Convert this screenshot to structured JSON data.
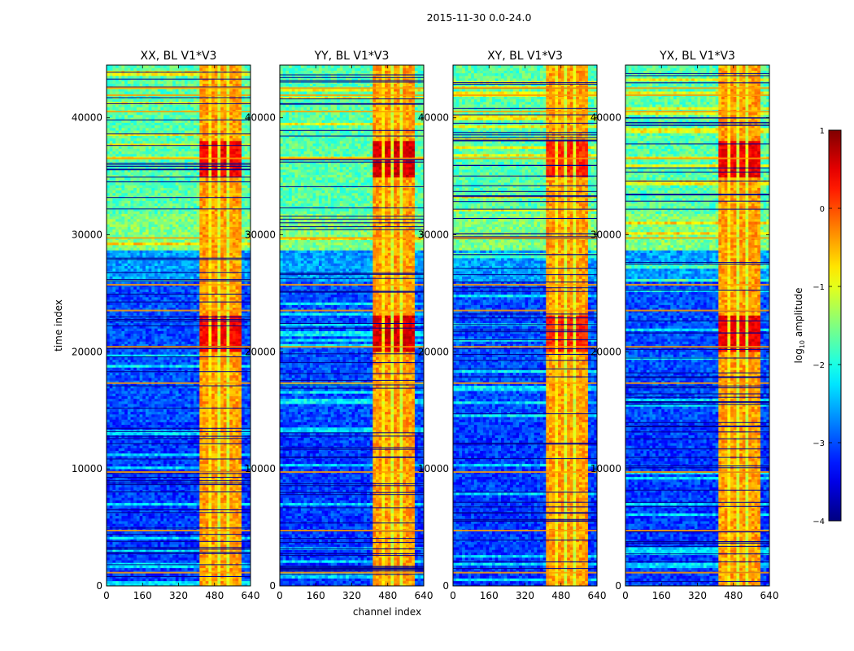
{
  "chart_data": {
    "type": "heatmap",
    "suptitle": "2015-11-30 0.0-24.0",
    "xlabel": "channel index",
    "ylabel": "time index",
    "x_range": [
      0,
      640
    ],
    "y_range": [
      0,
      44500
    ],
    "x_ticks": [
      0,
      160,
      320,
      480,
      640
    ],
    "y_ticks": [
      0,
      10000,
      20000,
      30000,
      40000
    ],
    "colorbar": {
      "label": "log",
      "label_sub": "10",
      "label_rest": " amplitude",
      "range": [
        -4,
        1
      ],
      "ticks": [
        1,
        0,
        -1,
        -2,
        -3,
        -4
      ],
      "tick_labels": [
        "1",
        "0",
        "−1",
        "−2",
        "−3",
        "−4"
      ],
      "colormap": "jet"
    },
    "panels": [
      {
        "title": "XX, BL V1*V3",
        "band_peak": 0.15
      },
      {
        "title": "YY, BL V1*V3",
        "band_peak": 0.35
      },
      {
        "title": "XY, BL V1*V3",
        "band_peak": -0.05
      },
      {
        "title": "YX, BL V1*V3",
        "band_peak": 0.2
      }
    ],
    "rfi_band": {
      "channel_start": 410,
      "channel_end": 600,
      "bright_channel_ranges": [
        [
          410,
          448
        ],
        [
          470,
          500
        ],
        [
          508,
          530
        ],
        [
          548,
          575
        ],
        [
          580,
          600
        ]
      ],
      "gap_channel_ranges": [
        [
          448,
          458
        ],
        [
          500,
          508
        ],
        [
          540,
          548
        ],
        [
          575,
          580
        ]
      ]
    },
    "time_segments": [
      {
        "from": 0,
        "to": 14000,
        "level": -3.1
      },
      {
        "from": 14000,
        "to": 26000,
        "level": -3.0
      },
      {
        "from": 26000,
        "to": 28800,
        "level": -2.6
      },
      {
        "from": 28800,
        "to": 31800,
        "level": -1.5
      },
      {
        "from": 31800,
        "to": 44500,
        "level": -1.7
      }
    ],
    "strong_rfi_time_ranges": [
      [
        20000,
        23200
      ],
      [
        35000,
        38000
      ]
    ],
    "strong_rfi_lines": [
      1200,
      4800,
      9800,
      17400,
      20500,
      23600,
      25800,
      29800,
      36600,
      40600,
      42000,
      42600
    ]
  }
}
